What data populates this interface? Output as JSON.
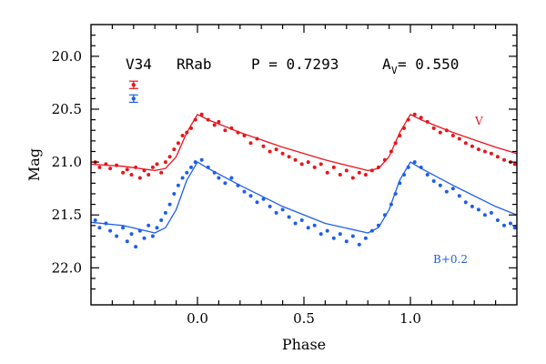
{
  "chart_data": {
    "type": "scatter",
    "title": {
      "star": "V34",
      "type": "RRab",
      "period_label": "P = 0.7293",
      "amp_prefix": "A",
      "amp_sub": "V",
      "amp_value": " = 0.550"
    },
    "xlabel": "Phase",
    "ylabel": "Mag",
    "xlim": [
      -0.5,
      1.5
    ],
    "ylim": [
      22.35,
      19.7
    ],
    "y_inverted": true,
    "xticks": [
      0.0,
      0.5,
      1.0
    ],
    "xtick_labels": [
      "0.0",
      "0.5",
      "1.0"
    ],
    "yticks": [
      20.0,
      20.5,
      21.0,
      21.5,
      22.0
    ],
    "ytick_labels": [
      "20.0",
      "20.5",
      "21.0",
      "21.5",
      "22.0"
    ],
    "series": [
      {
        "name": "V",
        "label": "V",
        "color": "#e8141c",
        "offset": 0.0,
        "errorbar": {
          "x": -0.3,
          "y": 20.27,
          "err": 0.035
        },
        "model": {
          "points": [
            [
              -0.5,
              21.02
            ],
            [
              -0.35,
              21.04
            ],
            [
              -0.2,
              21.08
            ],
            [
              -0.15,
              21.06
            ],
            [
              -0.1,
              20.95
            ],
            [
              -0.05,
              20.72
            ],
            [
              0.0,
              20.55
            ],
            [
              0.05,
              20.6
            ],
            [
              0.2,
              20.72
            ],
            [
              0.4,
              20.86
            ],
            [
              0.6,
              20.98
            ],
            [
              0.8,
              21.08
            ],
            [
              0.85,
              21.06
            ],
            [
              0.9,
              20.95
            ],
            [
              0.95,
              20.72
            ],
            [
              1.0,
              20.55
            ],
            [
              1.05,
              20.6
            ],
            [
              1.2,
              20.72
            ],
            [
              1.4,
              20.86
            ],
            [
              1.5,
              20.92
            ]
          ]
        },
        "scatter": [
          [
            -0.48,
            21.0
          ],
          [
            -0.46,
            21.05
          ],
          [
            -0.43,
            21.02
          ],
          [
            -0.41,
            21.06
          ],
          [
            -0.38,
            21.03
          ],
          [
            -0.35,
            21.1
          ],
          [
            -0.33,
            21.07
          ],
          [
            -0.31,
            21.12
          ],
          [
            -0.29,
            21.05
          ],
          [
            -0.27,
            21.15
          ],
          [
            -0.25,
            21.08
          ],
          [
            -0.23,
            21.12
          ],
          [
            -0.21,
            21.05
          ],
          [
            -0.19,
            21.02
          ],
          [
            -0.17,
            21.1
          ],
          [
            -0.15,
            21.0
          ],
          [
            -0.13,
            20.95
          ],
          [
            -0.11,
            20.88
          ],
          [
            -0.09,
            20.82
          ],
          [
            -0.07,
            20.75
          ],
          [
            -0.05,
            20.72
          ],
          [
            -0.03,
            20.68
          ],
          [
            -0.01,
            20.6
          ],
          [
            0.02,
            20.55
          ],
          [
            0.05,
            20.6
          ],
          [
            0.08,
            20.65
          ],
          [
            0.1,
            20.62
          ],
          [
            0.13,
            20.7
          ],
          [
            0.16,
            20.68
          ],
          [
            0.19,
            20.72
          ],
          [
            0.22,
            20.75
          ],
          [
            0.25,
            20.82
          ],
          [
            0.28,
            20.78
          ],
          [
            0.31,
            20.85
          ],
          [
            0.34,
            20.9
          ],
          [
            0.37,
            20.88
          ],
          [
            0.4,
            20.92
          ],
          [
            0.43,
            20.95
          ],
          [
            0.46,
            20.98
          ],
          [
            0.49,
            21.02
          ],
          [
            0.52,
            21.0
          ],
          [
            0.55,
            21.05
          ],
          [
            0.58,
            21.02
          ],
          [
            0.61,
            21.1
          ],
          [
            0.64,
            21.05
          ],
          [
            0.67,
            21.12
          ],
          [
            0.7,
            21.08
          ],
          [
            0.73,
            21.15
          ],
          [
            0.76,
            21.1
          ],
          [
            0.79,
            21.12
          ],
          [
            0.82,
            21.08
          ],
          [
            0.85,
            21.05
          ],
          [
            0.88,
            20.98
          ],
          [
            0.91,
            20.9
          ],
          [
            0.93,
            20.82
          ],
          [
            0.95,
            20.75
          ],
          [
            0.97,
            20.68
          ],
          [
            0.99,
            20.6
          ],
          [
            1.02,
            20.55
          ],
          [
            1.05,
            20.58
          ],
          [
            1.08,
            20.62
          ],
          [
            1.11,
            20.68
          ],
          [
            1.14,
            20.72
          ],
          [
            1.17,
            20.7
          ],
          [
            1.2,
            20.75
          ],
          [
            1.23,
            20.78
          ],
          [
            1.26,
            20.82
          ],
          [
            1.29,
            20.85
          ],
          [
            1.32,
            20.88
          ],
          [
            1.35,
            20.9
          ],
          [
            1.38,
            20.92
          ],
          [
            1.41,
            20.95
          ],
          [
            1.44,
            20.98
          ],
          [
            1.47,
            21.0
          ],
          [
            1.49,
            21.02
          ]
        ]
      },
      {
        "name": "B",
        "label": "B+0.2",
        "color": "#1f5ee8",
        "offset": 0.2,
        "errorbar": {
          "x": -0.3,
          "y": 20.4,
          "err": 0.035
        },
        "model": {
          "points": [
            [
              -0.5,
              21.57
            ],
            [
              -0.35,
              21.6
            ],
            [
              -0.2,
              21.67
            ],
            [
              -0.15,
              21.62
            ],
            [
              -0.1,
              21.45
            ],
            [
              -0.05,
              21.17
            ],
            [
              0.0,
              21.0
            ],
            [
              0.05,
              21.06
            ],
            [
              0.2,
              21.22
            ],
            [
              0.4,
              21.42
            ],
            [
              0.6,
              21.58
            ],
            [
              0.8,
              21.67
            ],
            [
              0.85,
              21.62
            ],
            [
              0.9,
              21.45
            ],
            [
              0.95,
              21.17
            ],
            [
              1.0,
              21.0
            ],
            [
              1.05,
              21.06
            ],
            [
              1.2,
              21.22
            ],
            [
              1.4,
              21.42
            ],
            [
              1.5,
              21.5
            ]
          ]
        },
        "scatter": [
          [
            -0.48,
            21.55
          ],
          [
            -0.46,
            21.62
          ],
          [
            -0.43,
            21.58
          ],
          [
            -0.41,
            21.65
          ],
          [
            -0.38,
            21.7
          ],
          [
            -0.35,
            21.62
          ],
          [
            -0.33,
            21.75
          ],
          [
            -0.31,
            21.68
          ],
          [
            -0.29,
            21.8
          ],
          [
            -0.27,
            21.65
          ],
          [
            -0.25,
            21.72
          ],
          [
            -0.23,
            21.6
          ],
          [
            -0.21,
            21.7
          ],
          [
            -0.19,
            21.62
          ],
          [
            -0.17,
            21.55
          ],
          [
            -0.15,
            21.48
          ],
          [
            -0.13,
            21.4
          ],
          [
            -0.11,
            21.3
          ],
          [
            -0.09,
            21.22
          ],
          [
            -0.07,
            21.15
          ],
          [
            -0.05,
            21.1
          ],
          [
            -0.03,
            21.05
          ],
          [
            -0.01,
            21.0
          ],
          [
            0.02,
            20.98
          ],
          [
            0.05,
            21.05
          ],
          [
            0.08,
            21.1
          ],
          [
            0.1,
            21.15
          ],
          [
            0.13,
            21.2
          ],
          [
            0.16,
            21.15
          ],
          [
            0.19,
            21.22
          ],
          [
            0.22,
            21.28
          ],
          [
            0.25,
            21.32
          ],
          [
            0.28,
            21.38
          ],
          [
            0.31,
            21.35
          ],
          [
            0.34,
            21.42
          ],
          [
            0.37,
            21.48
          ],
          [
            0.4,
            21.45
          ],
          [
            0.43,
            21.52
          ],
          [
            0.46,
            21.58
          ],
          [
            0.49,
            21.55
          ],
          [
            0.52,
            21.62
          ],
          [
            0.55,
            21.6
          ],
          [
            0.58,
            21.68
          ],
          [
            0.61,
            21.65
          ],
          [
            0.64,
            21.72
          ],
          [
            0.67,
            21.68
          ],
          [
            0.7,
            21.75
          ],
          [
            0.73,
            21.7
          ],
          [
            0.76,
            21.78
          ],
          [
            0.79,
            21.72
          ],
          [
            0.82,
            21.65
          ],
          [
            0.85,
            21.6
          ],
          [
            0.88,
            21.5
          ],
          [
            0.91,
            21.4
          ],
          [
            0.93,
            21.3
          ],
          [
            0.95,
            21.2
          ],
          [
            0.97,
            21.12
          ],
          [
            0.99,
            21.05
          ],
          [
            1.02,
            21.0
          ],
          [
            1.05,
            21.05
          ],
          [
            1.08,
            21.12
          ],
          [
            1.11,
            21.18
          ],
          [
            1.14,
            21.22
          ],
          [
            1.17,
            21.28
          ],
          [
            1.2,
            21.25
          ],
          [
            1.23,
            21.32
          ],
          [
            1.26,
            21.38
          ],
          [
            1.29,
            21.42
          ],
          [
            1.32,
            21.45
          ],
          [
            1.35,
            21.5
          ],
          [
            1.38,
            21.48
          ],
          [
            1.41,
            21.55
          ],
          [
            1.44,
            21.6
          ],
          [
            1.47,
            21.58
          ],
          [
            1.49,
            21.62
          ]
        ]
      }
    ],
    "grid": false,
    "legend": "none"
  }
}
